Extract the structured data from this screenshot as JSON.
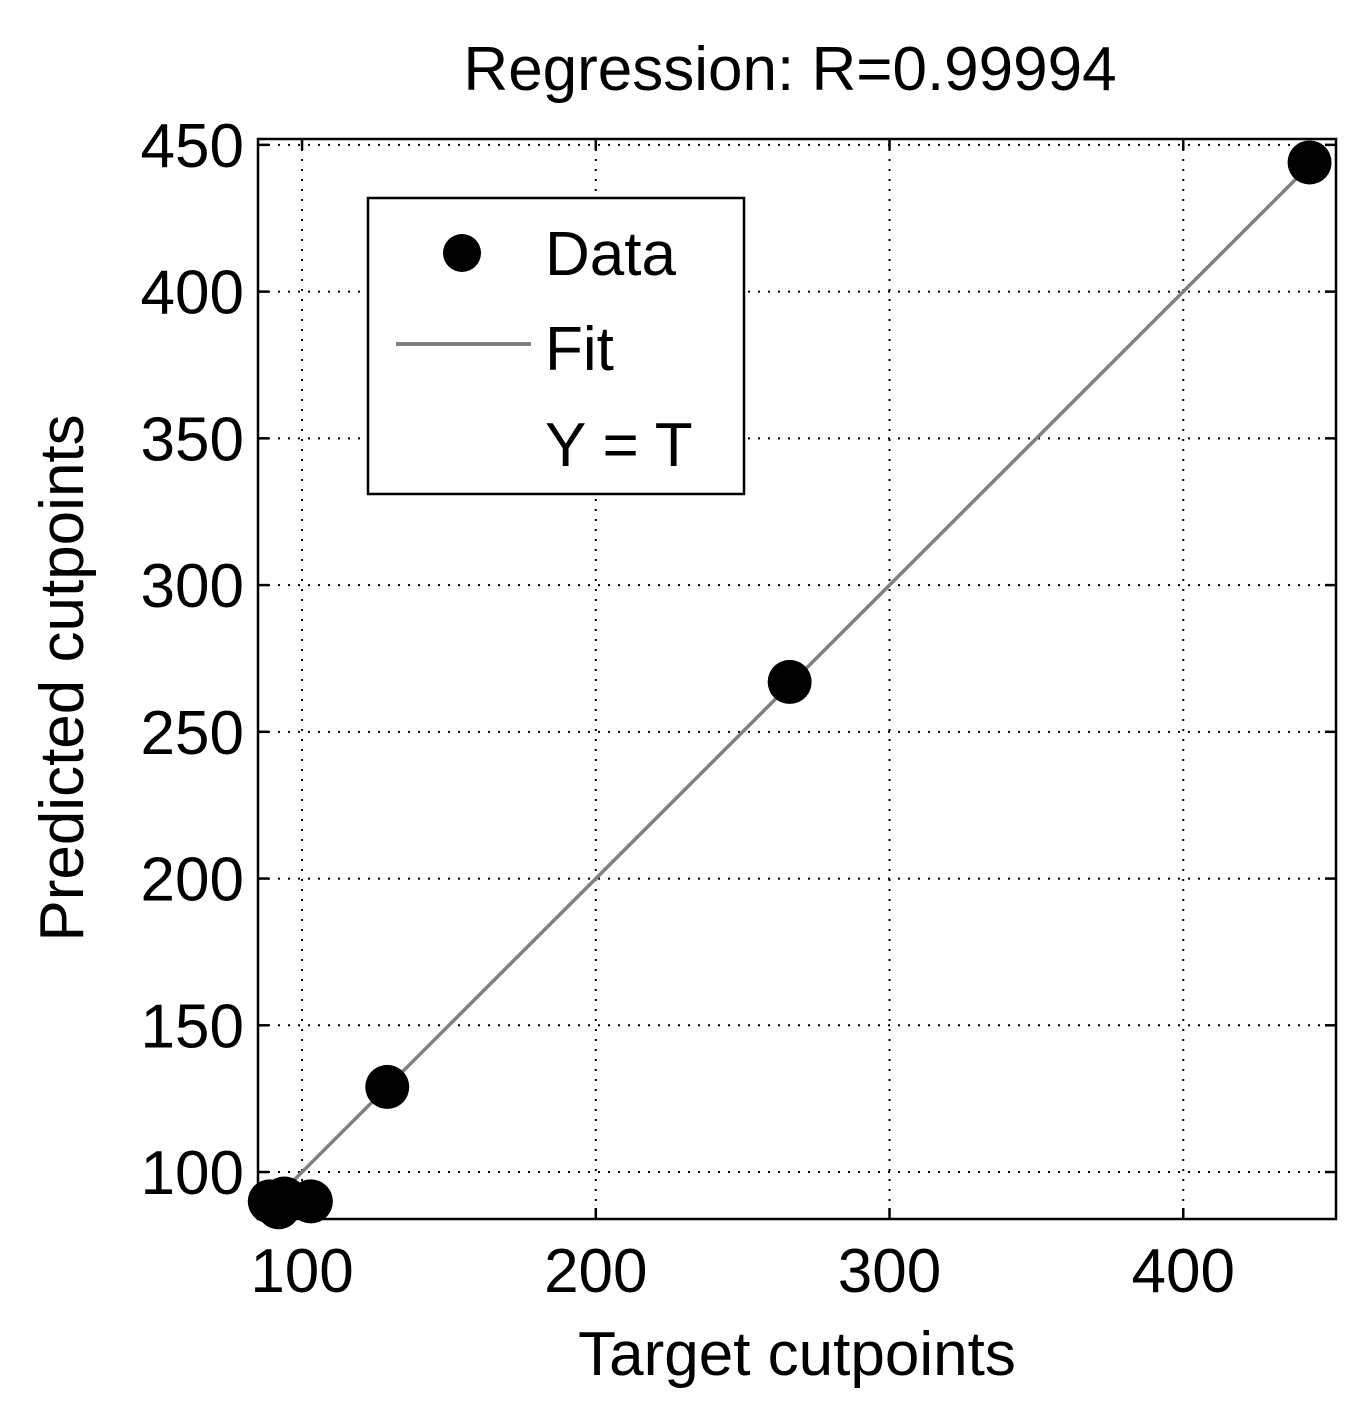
{
  "chart_data": {
    "type": "scatter",
    "title": "Regression: R=0.99994",
    "xlabel": "Target cutpoints",
    "ylabel": "Predicted cutpoints",
    "xlim": [
      85,
      452
    ],
    "ylim": [
      84,
      452
    ],
    "xticks": [
      100,
      200,
      300,
      400
    ],
    "yticks": [
      100,
      150,
      200,
      250,
      300,
      350,
      400,
      450
    ],
    "xtick_labels": [
      "100",
      "200",
      "300",
      "400"
    ],
    "ytick_labels": [
      "100",
      "150",
      "200",
      "250",
      "300",
      "350",
      "400",
      "450"
    ],
    "grid": true,
    "legend_position": "top-left",
    "legend": [
      {
        "label": "Data",
        "marker": "filled-circle"
      },
      {
        "label": "Fit",
        "marker": "line"
      },
      {
        "label": "Y = T",
        "marker": "none"
      }
    ],
    "series": [
      {
        "name": "Data",
        "points": [
          {
            "x": 89,
            "y": 90
          },
          {
            "x": 92,
            "y": 88
          },
          {
            "x": 94,
            "y": 91
          },
          {
            "x": 103,
            "y": 90
          },
          {
            "x": 129,
            "y": 129
          },
          {
            "x": 266,
            "y": 267
          },
          {
            "x": 443,
            "y": 444
          }
        ],
        "color": "#000000"
      },
      {
        "name": "Fit",
        "line": [
          {
            "x": 89,
            "y": 89
          },
          {
            "x": 443,
            "y": 443
          }
        ],
        "color": "#808080"
      }
    ]
  }
}
